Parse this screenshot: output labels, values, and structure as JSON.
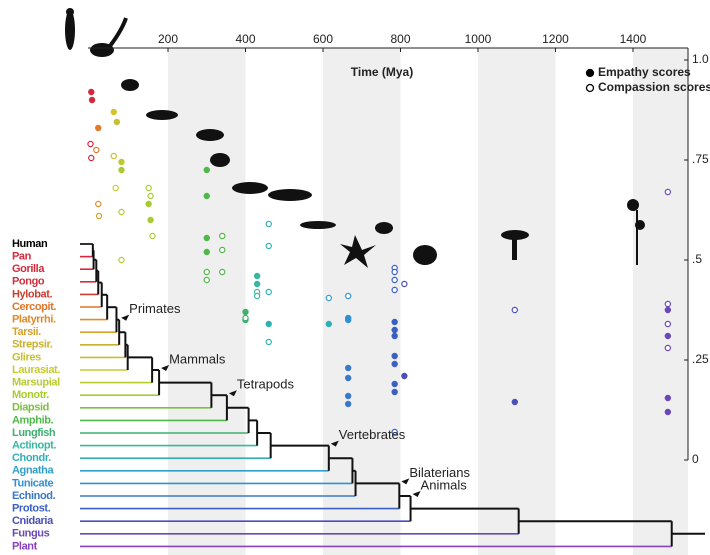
{
  "chart_data": {
    "type": "scatter",
    "x_label": "Time (Mya)",
    "xlim": [
      0,
      1542
    ],
    "xticks": [
      200,
      400,
      600,
      800,
      1000,
      1200,
      1400
    ],
    "ylim": [
      0,
      1
    ],
    "yticks": [
      0,
      {
        "value": 0.25,
        "label": ".25"
      },
      {
        "value": 0.5,
        "label": ".5"
      },
      {
        "value": 0.75,
        "label": ".75"
      },
      {
        "value": 1,
        "label": "1.0"
      }
    ],
    "shaded_bands": true,
    "legend": "top-right",
    "series": [
      {
        "name": "Empathy scores",
        "marker": "filled",
        "color": "#000000",
        "x": [
          2,
          4,
          20,
          60,
          68,
          80,
          80,
          150,
          155,
          300,
          300,
          300,
          300,
          430,
          430,
          400,
          400,
          460,
          615,
          665,
          665,
          665,
          665,
          665,
          665,
          785,
          785,
          785,
          785,
          785,
          785,
          785,
          810,
          1095,
          1490,
          1490,
          1490,
          1490
        ],
        "values": [
          0.92,
          0.9,
          0.83,
          0.87,
          0.845,
          0.745,
          0.725,
          0.64,
          0.6,
          0.725,
          0.66,
          0.555,
          0.52,
          0.46,
          0.44,
          0.37,
          0.35,
          0.34,
          0.34,
          0.355,
          0.35,
          0.23,
          0.205,
          0.16,
          0.14,
          0.345,
          0.325,
          0.31,
          0.26,
          0.24,
          0.19,
          0.17,
          0.21,
          0.145,
          0.375,
          0.31,
          0.155,
          0.12
        ],
        "colors": [
          "#d7263d",
          "#d02a3b",
          "#e07a2a",
          "#d2c42a",
          "#c8c030",
          "#b8cc30",
          "#a8cc30",
          "#a8cc30",
          "#a8cc30",
          "#50b848",
          "#50b848",
          "#50b848",
          "#50b848",
          "#38b8a0",
          "#38b8a0",
          "#40b070",
          "#40b070",
          "#30b0b8",
          "#30b0b8",
          "#3090d0",
          "#3090d0",
          "#3a78c8",
          "#3a78c8",
          "#3a78c8",
          "#3a78c8",
          "#3a60c0",
          "#3a60c0",
          "#3a60c0",
          "#3a60c0",
          "#3a60c0",
          "#3a60c0",
          "#3a60c0",
          "#4a50b8",
          "#4a50b8",
          "#6a48b8",
          "#6a48b8",
          "#6a48b8",
          "#6a48b8"
        ]
      },
      {
        "name": "Compassion scores",
        "marker": "open",
        "color": "#000000",
        "x": [
          0,
          2,
          15,
          20,
          22,
          60,
          65,
          80,
          80,
          150,
          155,
          160,
          300,
          300,
          340,
          340,
          340,
          430,
          430,
          400,
          460,
          460,
          460,
          460,
          615,
          665,
          785,
          785,
          785,
          785,
          785,
          810,
          1095,
          1490,
          1490,
          1490,
          1490
        ],
        "values": [
          0.79,
          0.755,
          0.775,
          0.64,
          0.61,
          0.76,
          0.68,
          0.62,
          0.5,
          0.68,
          0.66,
          0.56,
          0.47,
          0.45,
          0.56,
          0.525,
          0.47,
          0.42,
          0.41,
          0.355,
          0.59,
          0.535,
          0.42,
          0.295,
          0.405,
          0.41,
          0.48,
          0.47,
          0.45,
          0.425,
          0.07,
          0.44,
          0.375,
          0.67,
          0.39,
          0.34,
          0.28
        ],
        "colors": [
          "#d7263d",
          "#d02a3b",
          "#e07a2a",
          "#e08a2a",
          "#d9a02b",
          "#c8c030",
          "#c8cc30",
          "#b8cc30",
          "#b8cc30",
          "#a8cc30",
          "#a8cc30",
          "#a8cc30",
          "#50b848",
          "#50b848",
          "#50b848",
          "#50b848",
          "#50b848",
          "#38b8a0",
          "#38b8a0",
          "#40b070",
          "#30b0b8",
          "#30b0b8",
          "#30b0b8",
          "#30b0b8",
          "#30a0c8",
          "#3090d0",
          "#3a60c0",
          "#3a60c0",
          "#3a60c0",
          "#3a60c0",
          "#3a60c0",
          "#4a50b8",
          "#4a50b8",
          "#6a48b8",
          "#6a48b8",
          "#6a48b8",
          "#6a48b8"
        ]
      }
    ],
    "tree": {
      "taxa": [
        {
          "name": "Human",
          "color": "#000000",
          "diverge": 0
        },
        {
          "name": "Pan",
          "color": "#d7263d",
          "diverge": 6
        },
        {
          "name": "Gorilla",
          "color": "#d02a3b",
          "diverge": 8
        },
        {
          "name": "Pongo",
          "color": "#d0303a",
          "diverge": 15
        },
        {
          "name": "Hylobat.",
          "color": "#c84032",
          "diverge": 20
        },
        {
          "name": "Cercopit.",
          "color": "#e0752a",
          "diverge": 29
        },
        {
          "name": "Platyrrhi.",
          "color": "#e08a2a",
          "diverge": 43
        },
        {
          "name": "Tarsii.",
          "color": "#d9a02b",
          "diverge": 67
        },
        {
          "name": "Strepsir.",
          "color": "#c8b22a",
          "diverge": 74
        },
        {
          "name": "Glires",
          "color": "#c8c030",
          "diverge": 90
        },
        {
          "name": "Laurasiat.",
          "color": "#c8cc30",
          "diverge": 96
        },
        {
          "name": "Marsupial",
          "color": "#b8cc30",
          "diverge": 159
        },
        {
          "name": "Monotr.",
          "color": "#a8cc30",
          "diverge": 177
        },
        {
          "name": "Diapsid",
          "color": "#7cc040",
          "diverge": 312
        },
        {
          "name": "Amphib.",
          "color": "#50b848",
          "diverge": 352
        },
        {
          "name": "Lungfish",
          "color": "#40b070",
          "diverge": 408
        },
        {
          "name": "Actinopt.",
          "color": "#38b8a0",
          "diverge": 430
        },
        {
          "name": "Chondr.",
          "color": "#30b0b8",
          "diverge": 465
        },
        {
          "name": "Agnatha",
          "color": "#30a0c8",
          "diverge": 615
        },
        {
          "name": "Tunicate",
          "color": "#3090d0",
          "diverge": 676
        },
        {
          "name": "Echinod.",
          "color": "#3a78c8",
          "diverge": 684
        },
        {
          "name": "Protost.",
          "color": "#3a60c0",
          "diverge": 797
        },
        {
          "name": "Cnidaria",
          "color": "#4a50b8",
          "diverge": 826
        },
        {
          "name": "Fungus",
          "color": "#6a48b8",
          "diverge": 1105
        },
        {
          "name": "Plant",
          "color": "#8a40c0",
          "diverge": 1500
        }
      ],
      "clades": [
        {
          "label": "Primates",
          "x": 74
        },
        {
          "label": "Mammals",
          "x": 177
        },
        {
          "label": "Tetrapods",
          "x": 352
        },
        {
          "label": "Vertebrates",
          "x": 615
        },
        {
          "label": "Bilaterians",
          "x": 797
        },
        {
          "label": "Animals",
          "x": 826
        }
      ]
    }
  }
}
